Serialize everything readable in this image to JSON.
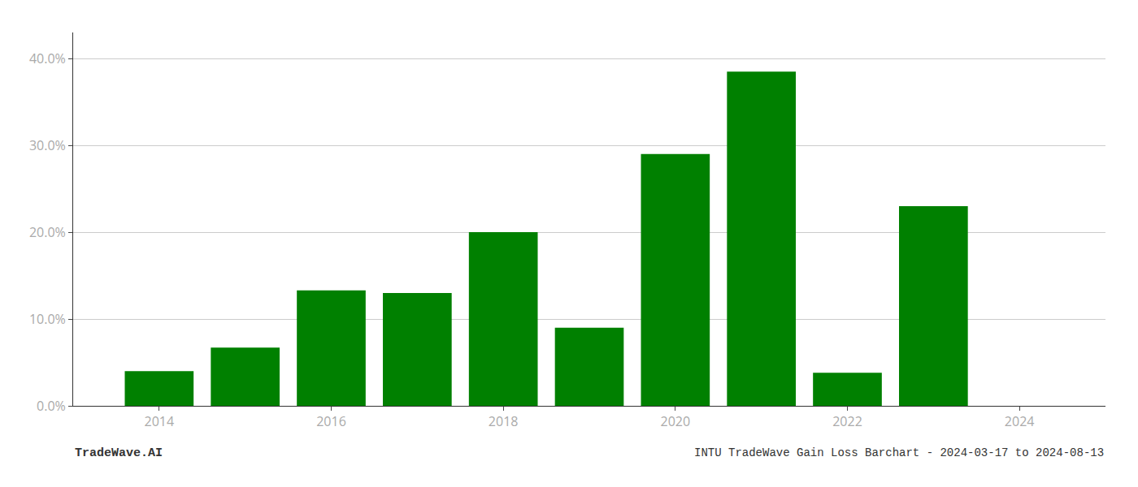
{
  "chart_data": {
    "type": "bar",
    "title": "INTU TradeWave Gain Loss Barchart - 2024-03-17 to 2024-08-13",
    "annotations": [
      {
        "text": "TradeWave.AI"
      }
    ],
    "x": [
      2014,
      2015,
      2016,
      2017,
      2018,
      2019,
      2020,
      2021,
      2022,
      2023
    ],
    "values": [
      0.04,
      0.067,
      0.133,
      0.13,
      0.2,
      0.09,
      0.29,
      0.385,
      0.038,
      0.23
    ],
    "color": "#008000",
    "xlim": [
      2013.0,
      2025.0
    ],
    "xticks": [
      2014,
      2016,
      2018,
      2020,
      2022,
      2024
    ],
    "ylim": [
      0,
      0.43
    ],
    "yticks": [
      {
        "value": 0.0,
        "label": "0.0%"
      },
      {
        "value": 0.1,
        "label": "10.0%"
      },
      {
        "value": 0.2,
        "label": "20.0%"
      },
      {
        "value": 0.3,
        "label": "30.0%"
      },
      {
        "value": 0.4,
        "label": "40.0%"
      }
    ],
    "grid": true
  }
}
